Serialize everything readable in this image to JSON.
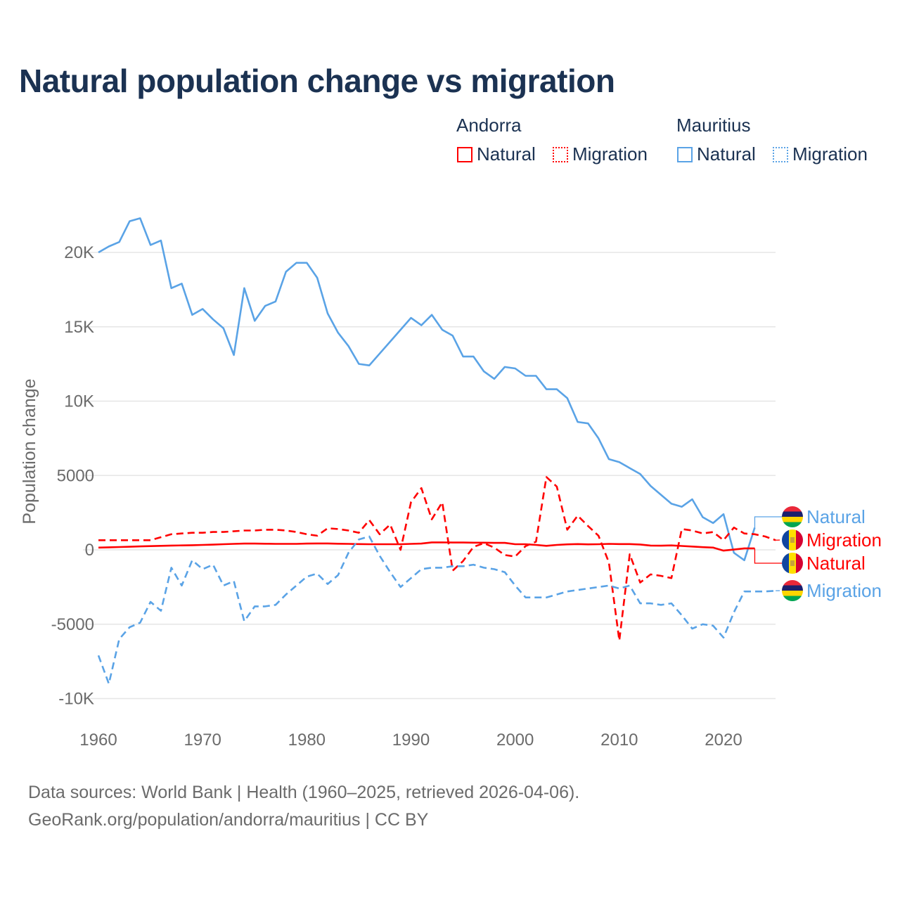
{
  "chart_data": {
    "type": "line",
    "title": "Natural population change vs migration",
    "xlabel": "",
    "ylabel": "Population change",
    "xlim": [
      1960,
      2025
    ],
    "ylim": [
      -10000,
      22500
    ],
    "x_ticks": [
      "1960",
      "1970",
      "1980",
      "1990",
      "2000",
      "2010",
      "2020"
    ],
    "y_ticks": [
      {
        "v": -10000,
        "label": "-10K"
      },
      {
        "v": -5000,
        "label": "-5000"
      },
      {
        "v": 0,
        "label": "0"
      },
      {
        "v": 5000,
        "label": "5000"
      },
      {
        "v": 10000,
        "label": "10K"
      },
      {
        "v": 15000,
        "label": "15K"
      },
      {
        "v": 20000,
        "label": "20K"
      }
    ],
    "grid": true,
    "legend_placement": "top-right",
    "legend_groups": [
      "Andorra",
      "Mauritius"
    ],
    "series": [
      {
        "name": "Mauritius Natural",
        "country": "Mauritius",
        "kind": "Natural",
        "color": "#5aa3e6",
        "dash": false,
        "start": 1960,
        "end_label": "Natural",
        "values": [
          20000,
          20400,
          20700,
          22100,
          22300,
          20500,
          20800,
          17600,
          17900,
          15800,
          16200,
          15500,
          14900,
          13100,
          17600,
          15400,
          16400,
          16700,
          18700,
          19300,
          19300,
          18300,
          15900,
          14600,
          13700,
          12500,
          12400,
          13200,
          14000,
          14800,
          15600,
          15100,
          15800,
          14800,
          14400,
          13000,
          13000,
          12000,
          11500,
          12300,
          12200,
          11700,
          11700,
          10800,
          10800,
          10200,
          8600,
          8500,
          7500,
          6100,
          5900,
          5500,
          5100,
          4300,
          3700,
          3100,
          2900,
          3400,
          2200,
          1800,
          2400,
          -200,
          -700,
          1500
        ]
      },
      {
        "name": "Andorra Migration",
        "country": "Andorra",
        "kind": "Migration",
        "color": "#ff0000",
        "dash": true,
        "start": 1960,
        "end_label": "Migration",
        "values": [
          650,
          650,
          650,
          650,
          650,
          650,
          850,
          1050,
          1100,
          1150,
          1150,
          1200,
          1200,
          1250,
          1300,
          1300,
          1350,
          1350,
          1300,
          1200,
          1050,
          950,
          1450,
          1400,
          1300,
          1150,
          2000,
          1050,
          1700,
          0,
          3200,
          4150,
          2050,
          3200,
          -1400,
          -750,
          200,
          450,
          150,
          -350,
          -450,
          250,
          550,
          4900,
          4250,
          1350,
          2300,
          1600,
          950,
          -850,
          -6100,
          -300,
          -2200,
          -1650,
          -1750,
          -1900,
          1400,
          1300,
          1100,
          1200,
          650,
          1500,
          1100,
          1050,
          900,
          650
        ]
      },
      {
        "name": "Andorra Natural",
        "country": "Andorra",
        "kind": "Natural",
        "color": "#ff0000",
        "dash": false,
        "start": 1960,
        "end_label": "Natural",
        "values": [
          150,
          170,
          190,
          210,
          230,
          250,
          270,
          290,
          300,
          310,
          330,
          350,
          380,
          400,
          420,
          420,
          410,
          400,
          400,
          400,
          420,
          430,
          430,
          410,
          400,
          390,
          380,
          380,
          380,
          380,
          400,
          420,
          500,
          500,
          490,
          490,
          480,
          480,
          470,
          470,
          380,
          380,
          330,
          270,
          330,
          370,
          390,
          370,
          380,
          400,
          390,
          390,
          360,
          290,
          280,
          300,
          260,
          220,
          180,
          150,
          -50,
          20,
          100,
          100
        ]
      },
      {
        "name": "Mauritius Migration",
        "country": "Mauritius",
        "kind": "Migration",
        "color": "#5aa3e6",
        "dash": true,
        "start": 1960,
        "end_label": "Migration",
        "values": [
          -7100,
          -9000,
          -6000,
          -5200,
          -4900,
          -3500,
          -4100,
          -1200,
          -2400,
          -700,
          -1300,
          -1000,
          -2400,
          -2100,
          -4800,
          -3800,
          -3800,
          -3700,
          -3000,
          -2400,
          -1800,
          -1600,
          -2300,
          -1700,
          -200,
          700,
          900,
          -400,
          -1500,
          -2500,
          -1900,
          -1300,
          -1200,
          -1200,
          -1100,
          -1100,
          -1000,
          -1200,
          -1300,
          -1500,
          -2400,
          -3200,
          -3200,
          -3200,
          -3000,
          -2800,
          -2700,
          -2600,
          -2500,
          -2400,
          -2600,
          -2400,
          -3600,
          -3600,
          -3700,
          -3600,
          -4400,
          -5300,
          -5000,
          -5100,
          -5900,
          -4200,
          -2800,
          -2800,
          -2800,
          -2750
        ]
      }
    ]
  },
  "legend": {
    "andorra": {
      "title": "Andorra",
      "natural": "Natural",
      "migration": "Migration",
      "color": "#ff0000"
    },
    "mauritius": {
      "title": "Mauritius",
      "natural": "Natural",
      "migration": "Migration",
      "color": "#5aa3e6"
    }
  },
  "source": {
    "line1": "Data sources: World Bank | Health (1960–2025, retrieved 2026-04-06).",
    "line2": "GeoRank.org/population/andorra/mauritius | CC BY"
  }
}
